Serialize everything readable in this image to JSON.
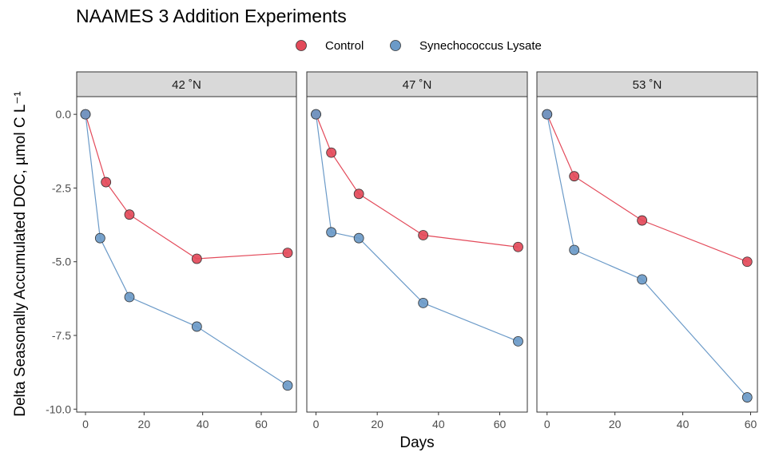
{
  "chart_data": {
    "type": "line",
    "title": "NAAMES 3 Addition Experiments",
    "xlabel": "Days",
    "ylabel": "Delta Seasonally Accumulated DOC, µmol C L⁻¹",
    "legend_position": "top",
    "legend": [
      {
        "name": "Control",
        "color": "#e34a5a"
      },
      {
        "name": "Synechococcus Lysate",
        "color": "#6b9ac8"
      }
    ],
    "xlim": [
      -3,
      72
    ],
    "ylim": [
      -10.1,
      0.6
    ],
    "y_ticks": [
      0.0,
      -2.5,
      -5.0,
      -7.5,
      -10.0
    ],
    "y_tick_labels": [
      "0.0",
      "-2.5",
      "-5.0",
      "-7.5",
      "-10.0"
    ],
    "x_ticks": [
      0,
      20,
      40,
      60
    ],
    "x_tick_labels": [
      "0",
      "20",
      "40",
      "60"
    ],
    "grid": false,
    "facets": [
      {
        "label": "42 ˚N",
        "xlim": [
          -3,
          72
        ],
        "series": [
          {
            "name": "Control",
            "color": "#e34a5a",
            "x": [
              0,
              7,
              15,
              38,
              69
            ],
            "y": [
              0.0,
              -2.3,
              -3.4,
              -4.9,
              -4.7
            ]
          },
          {
            "name": "Synechococcus Lysate",
            "color": "#6b9ac8",
            "x": [
              0,
              5,
              15,
              38,
              69
            ],
            "y": [
              0.0,
              -4.2,
              -6.2,
              -7.2,
              -9.2
            ]
          }
        ]
      },
      {
        "label": "47 ˚N",
        "xlim": [
          -3,
          69
        ],
        "series": [
          {
            "name": "Control",
            "color": "#e34a5a",
            "x": [
              0,
              5,
              14,
              35,
              66
            ],
            "y": [
              0.0,
              -1.3,
              -2.7,
              -4.1,
              -4.5
            ]
          },
          {
            "name": "Synechococcus Lysate",
            "color": "#6b9ac8",
            "x": [
              0,
              5,
              14,
              35,
              66
            ],
            "y": [
              0.0,
              -4.0,
              -4.2,
              -6.4,
              -7.7
            ]
          }
        ]
      },
      {
        "label": "53 ˚N",
        "xlim": [
          -3,
          62
        ],
        "series": [
          {
            "name": "Control",
            "color": "#e34a5a",
            "x": [
              0,
              8,
              28,
              59
            ],
            "y": [
              0.0,
              -2.1,
              -3.6,
              -5.0
            ]
          },
          {
            "name": "Synechococcus Lysate",
            "color": "#6b9ac8",
            "x": [
              0,
              8,
              28,
              59
            ],
            "y": [
              0.0,
              -4.6,
              -5.6,
              -9.6
            ]
          }
        ]
      }
    ]
  }
}
